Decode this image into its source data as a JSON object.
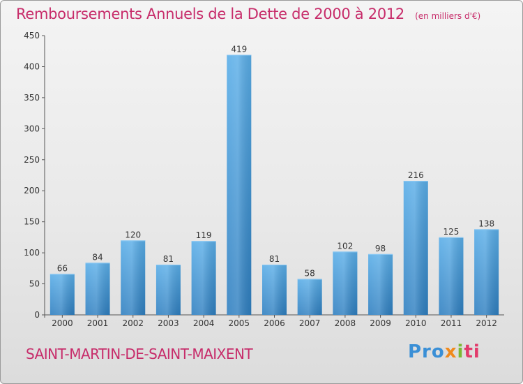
{
  "header": {
    "title": "Remboursements Annuels de la Dette de 2000 à 2012",
    "subtitle": "(en milliers d'€)"
  },
  "footer": {
    "commune": "SAINT-MARTIN-DE-SAINT-MAIXENT",
    "logo": "Proxiti"
  },
  "colors": {
    "title": "#c72c6a",
    "bar_top": "#5aaee8",
    "bar_bottom": "#2f7fc0"
  },
  "chart_data": {
    "type": "bar",
    "title": "Remboursements Annuels de la Dette de 2000 à 2012",
    "subtitle": "(en milliers d'€)",
    "xlabel": "",
    "ylabel": "",
    "categories": [
      "2000",
      "2001",
      "2002",
      "2003",
      "2004",
      "2005",
      "2006",
      "2007",
      "2008",
      "2009",
      "2010",
      "2011",
      "2012"
    ],
    "values": [
      66,
      84,
      120,
      81,
      119,
      419,
      81,
      58,
      102,
      98,
      216,
      125,
      138
    ],
    "ylim": [
      0,
      450
    ],
    "yticks": [
      0,
      50,
      100,
      150,
      200,
      250,
      300,
      350,
      400,
      450
    ],
    "grid": false,
    "legend": "none"
  }
}
